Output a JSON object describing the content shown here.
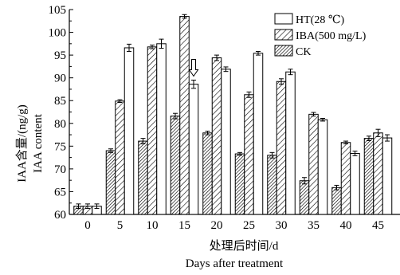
{
  "chart_data": {
    "type": "bar",
    "categories": [
      "0",
      "5",
      "10",
      "15",
      "20",
      "25",
      "30",
      "35",
      "40",
      "45"
    ],
    "series": [
      {
        "name": "CK",
        "pattern": "dense-hatch",
        "values": [
          61.8,
          74.0,
          76.1,
          81.6,
          77.9,
          73.3,
          73.0,
          67.4,
          65.9,
          76.7
        ],
        "errors": [
          0.5,
          0.4,
          0.6,
          0.6,
          0.4,
          0.3,
          0.6,
          0.7,
          0.5,
          0.5
        ]
      },
      {
        "name": "IBA(500 mg/L)",
        "pattern": "sparse-hatch",
        "values": [
          61.8,
          84.9,
          96.8,
          103.5,
          94.4,
          86.3,
          89.2,
          82.0,
          75.8,
          77.9
        ],
        "errors": [
          0.5,
          0.3,
          0.4,
          0.4,
          0.6,
          0.6,
          0.6,
          0.4,
          0.3,
          0.8
        ]
      },
      {
        "name": "HT(28 ℃)",
        "pattern": "open",
        "values": [
          61.8,
          96.6,
          97.5,
          88.6,
          91.9,
          95.4,
          91.3,
          80.8,
          73.4,
          76.8
        ],
        "errors": [
          0.5,
          0.8,
          1.0,
          0.9,
          0.5,
          0.4,
          0.6,
          0.3,
          0.5,
          0.7
        ]
      }
    ],
    "ylim": [
      60,
      105
    ],
    "yticks": [
      "60",
      "65",
      "70",
      "75",
      "80",
      "85",
      "90",
      "95",
      "100",
      "105"
    ],
    "ylabel_cn": "IAA含量/(ng/g)",
    "ylabel_en": "IAA content",
    "xlabel_cn": "处理后时间/d",
    "xlabel_en": "Days after treatment",
    "legend_position": "top-right",
    "annotation": "down-arrow above HT bar at day 15",
    "colors": {
      "ink": "#000000",
      "bg": "#ffffff"
    }
  }
}
